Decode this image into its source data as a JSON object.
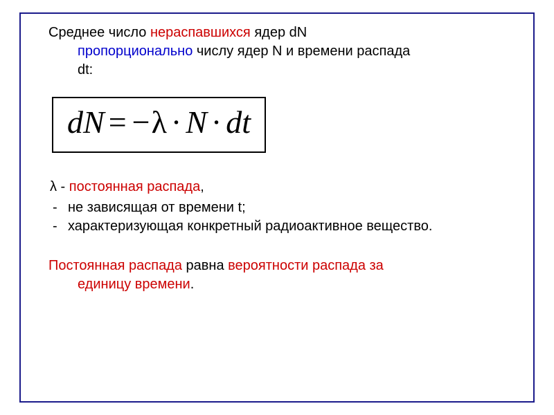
{
  "paragraph1": {
    "prefix": "Среднее число ",
    "red1": "нераспавшихся",
    "mid1": "  ядер dN ",
    "blue1": "пропорционально",
    "mid2": " числу ядер N и времени распада ",
    "tail": "dt:"
  },
  "formula": {
    "dN": "dN",
    "eq": "=",
    "minus": "−",
    "lambda": "λ",
    "dot1": "·",
    "N": "N",
    "dot2": "·",
    "dt": "dt"
  },
  "lambda_def": {
    "symbol": "λ",
    "dash": " - ",
    "term": "постоянная распада",
    "comma": ","
  },
  "bullets": {
    "item1": "не зависящая от времени t;",
    "item2": "характеризующая конкретный радиоактивное вещество."
  },
  "conclusion": {
    "red1": "Постоянная распада",
    "mid": " равна ",
    "red2": "вероятности распада за единицу времени",
    "period": "."
  },
  "colors": {
    "border": "#1a1a8a",
    "red_text": "#cc0000",
    "blue_text": "#0000cc",
    "black": "#000000",
    "bg": "#ffffff"
  },
  "typography": {
    "body_fontsize": 20,
    "formula_fontsize": 46,
    "body_font": "Arial, sans-serif",
    "formula_font": "Times New Roman, serif"
  }
}
